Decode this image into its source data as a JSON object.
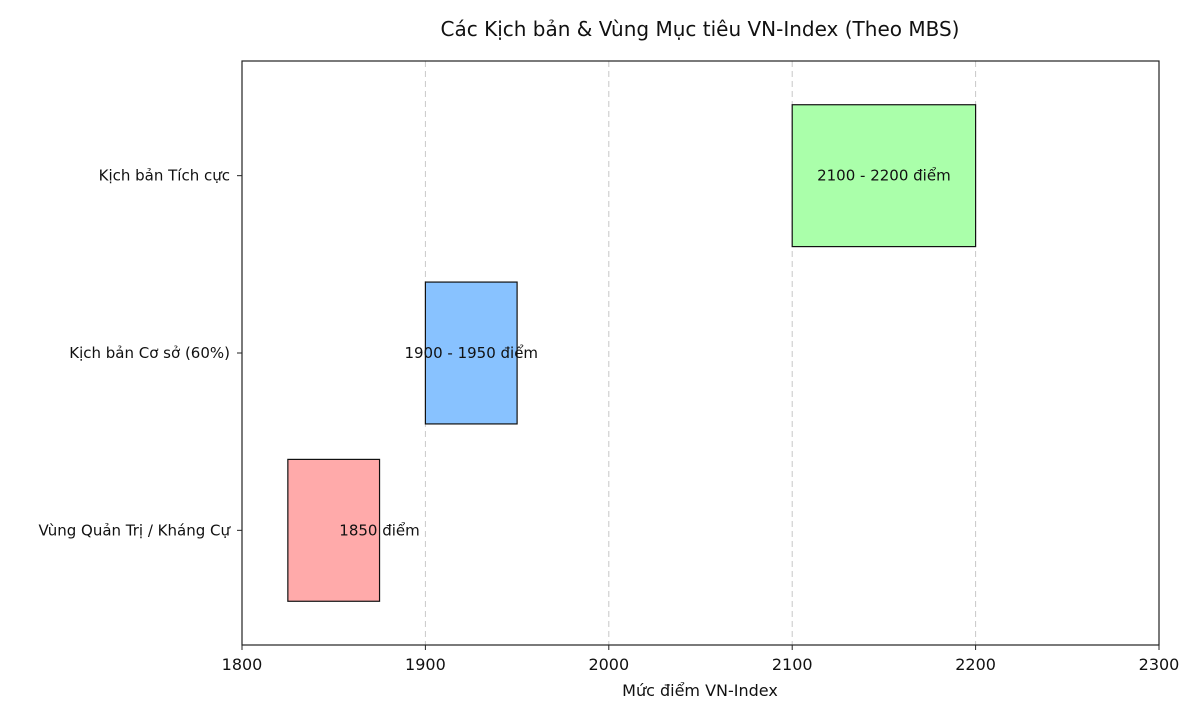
{
  "chart_data": {
    "type": "bar",
    "orientation": "horizontal-range",
    "title": "Các Kịch bản & Vùng Mục tiêu VN-Index (Theo MBS)",
    "xlabel": "Mức điểm VN-Index",
    "ylabel": "",
    "xlim": [
      1800,
      2300
    ],
    "xticks": [
      "1800",
      "1900",
      "2000",
      "2100",
      "2200",
      "2300"
    ],
    "grid": "vertical-dashed",
    "categories": [
      "Vùng Quản Trị / Kháng Cự",
      "Kịch bản Cơ sở (60%)",
      "Kịch bản Tích cực"
    ],
    "series": [
      {
        "category": "Vùng Quản Trị / Kháng Cự",
        "start": 1825,
        "end": 1875,
        "color": "#ffaaaa",
        "label": "1850 điểm"
      },
      {
        "category": "Kịch bản Cơ sở (60%)",
        "start": 1900,
        "end": 1950,
        "color": "#88c2ff",
        "label": "1900 - 1950 điểm"
      },
      {
        "category": "Kịch bản Tích cực",
        "start": 2100,
        "end": 2200,
        "color": "#aaffaa",
        "label": "2100 - 2200 điểm"
      }
    ]
  }
}
